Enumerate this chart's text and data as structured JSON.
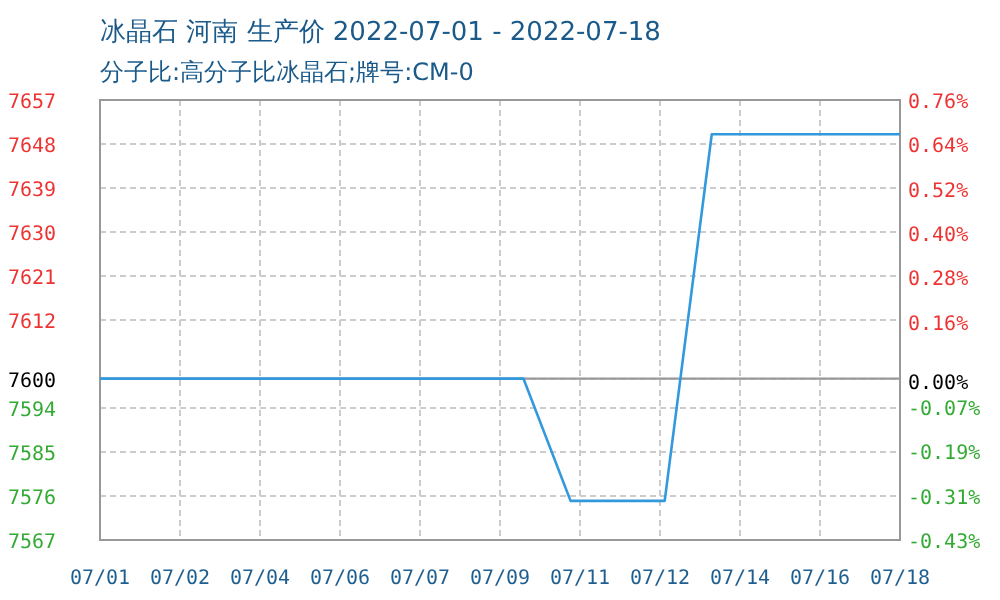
{
  "chart_data": {
    "type": "line",
    "title": "冰晶石 河南 生产价 2022-07-01 - 2022-07-18",
    "subtitle": "分子比:高分子比冰晶石;牌号:CM-0",
    "x": [
      "2022-07-01",
      "2022-07-10",
      "2022-07-11",
      "2022-07-13",
      "2022-07-14",
      "2022-07-18"
    ],
    "series": [
      {
        "color": "#3399dd",
        "values": [
          7600,
          7600,
          7575,
          7575,
          7650,
          7650
        ]
      }
    ],
    "xlim": [
      "2022-07-01",
      "2022-07-18"
    ],
    "xticks": [
      {
        "value": "2022-07-01",
        "label": "07/01"
      },
      {
        "value": "2022-07-02T16:48",
        "label": "07/02"
      },
      {
        "value": "2022-07-04T09:36",
        "label": "07/04"
      },
      {
        "value": "2022-07-06T02:24",
        "label": "07/06"
      },
      {
        "value": "2022-07-07T19:12",
        "label": "07/07"
      },
      {
        "value": "2022-07-09T12:00",
        "label": "07/09"
      },
      {
        "value": "2022-07-11T04:48",
        "label": "07/11"
      },
      {
        "value": "2022-07-12T21:36",
        "label": "07/12"
      },
      {
        "value": "2022-07-14T14:24",
        "label": "07/14"
      },
      {
        "value": "2022-07-16T07:12",
        "label": "07/16"
      },
      {
        "value": "2022-07-18",
        "label": "07/18"
      }
    ],
    "ylim": [
      7567,
      7657
    ],
    "yticks": [
      7567,
      7576,
      7585,
      7594,
      7600,
      7612,
      7621,
      7630,
      7639,
      7648,
      7657
    ],
    "y2lim": [
      -0.43,
      0.76
    ],
    "y2ticks": [
      {
        "value": -0.43,
        "label": "-0.43%"
      },
      {
        "value": -0.31,
        "label": "-0.31%"
      },
      {
        "value": -0.19,
        "label": "-0.19%"
      },
      {
        "value": -0.07,
        "label": "-0.07%"
      },
      {
        "value": 0,
        "label": "0.00%"
      },
      {
        "value": 0.16,
        "label": "0.16%"
      },
      {
        "value": 0.28,
        "label": "0.28%"
      },
      {
        "value": 0.4,
        "label": "0.40%"
      },
      {
        "value": 0.52,
        "label": "0.52%"
      },
      {
        "value": 0.64,
        "label": "0.64%"
      },
      {
        "value": 0.76,
        "label": "0.76%"
      }
    ],
    "ref_lines": [
      {
        "axis": "y",
        "value": 7600,
        "color": "#999999"
      }
    ],
    "grid": true,
    "marker": "none",
    "line_style": "solid"
  }
}
